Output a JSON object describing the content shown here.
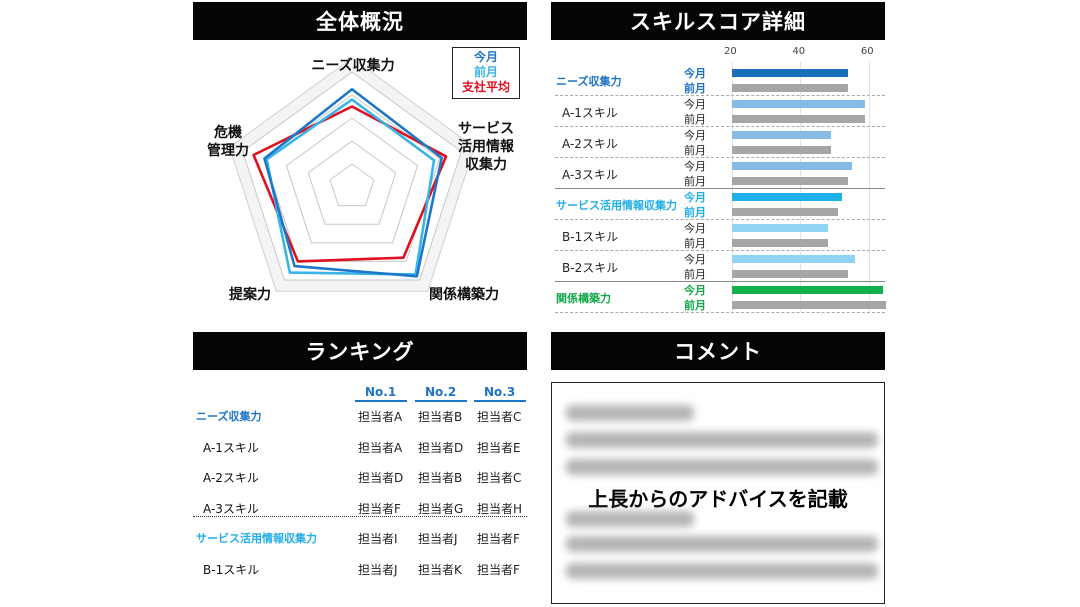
{
  "panels": {
    "overview": {
      "title": "全体概況"
    },
    "skill_score": {
      "title": "スキルスコア詳細"
    },
    "ranking": {
      "title": "ランキング"
    },
    "comment": {
      "title": "コメント"
    }
  },
  "legend": {
    "this_month": "今月",
    "last_month": "前月",
    "company_avg": "支社平均"
  },
  "colors": {
    "this_month": "#1f77c8",
    "last_month": "#39b4e6",
    "company_avg": "#e0101e",
    "cat_blue": "#1e74c6",
    "cat_cyan": "#22aee8",
    "cat_green": "#14a84a",
    "gray_bar": "#a6a6a6",
    "bar_blue_dark": "#1a6fba",
    "bar_blue_light": "#86bbe6",
    "bar_cyan": "#1eb0e8",
    "bar_cyan_light": "#8fd4f2",
    "bar_green": "#10b04c"
  },
  "radar": {
    "axes": [
      "ニーズ収集力",
      "サービス活用情報収集力",
      "関係構築力",
      "提案力",
      "危機管理力"
    ],
    "axis_labels": {
      "needs": "ニーズ収集力",
      "service": [
        "サービス",
        "活用情報",
        "収集力"
      ],
      "relation": "関係構築力",
      "proposal": "提案力",
      "risk": [
        "危機",
        "管理力"
      ]
    },
    "max": 100,
    "series": [
      {
        "key": "this_month",
        "values": [
          85,
          82,
          96,
          85,
          80
        ]
      },
      {
        "key": "last_month",
        "values": [
          76,
          75,
          94,
          92,
          78
        ]
      },
      {
        "key": "company_avg",
        "values": [
          70,
          86,
          76,
          80,
          90
        ]
      }
    ]
  },
  "chart_data": {
    "type": "bar",
    "title": "スキルスコア詳細",
    "xlim": [
      20,
      65
    ],
    "ticks": [
      20,
      40,
      60
    ],
    "tick_labels": [
      "20",
      "40",
      "60"
    ],
    "rows": [
      {
        "category": "ニーズ収集力",
        "is_header": true,
        "color_group": "blue",
        "this_month": 54,
        "last_month": 54
      },
      {
        "category": "A-1スキル",
        "is_header": false,
        "color_group": "blue",
        "this_month": 59,
        "last_month": 59
      },
      {
        "category": "A-2スキル",
        "is_header": false,
        "color_group": "blue",
        "this_month": 49,
        "last_month": 49
      },
      {
        "category": "A-3スキル",
        "is_header": false,
        "color_group": "blue",
        "this_month": 55,
        "last_month": 54
      },
      {
        "category": "サービス活用情報収集力",
        "is_header": true,
        "color_group": "cyan",
        "this_month": 52,
        "last_month": 51
      },
      {
        "category": "B-1スキル",
        "is_header": false,
        "color_group": "cyan",
        "this_month": 48,
        "last_month": 48
      },
      {
        "category": "B-2スキル",
        "is_header": false,
        "color_group": "cyan",
        "this_month": 56,
        "last_month": 54
      },
      {
        "category": "関係構築力",
        "is_header": true,
        "color_group": "green",
        "this_month": 64,
        "last_month": 65
      }
    ],
    "series": [
      {
        "name": "今月",
        "key": "this_month"
      },
      {
        "name": "前月",
        "key": "last_month"
      }
    ]
  },
  "ranking": {
    "columns": [
      "No.1",
      "No.2",
      "No.3"
    ],
    "rows": [
      {
        "label": "ニーズ収集力",
        "is_header": true,
        "color_group": "blue",
        "cells": [
          "担当者A",
          "担当者B",
          "担当者C"
        ]
      },
      {
        "label": "A-1スキル",
        "is_header": false,
        "color_group": "blue",
        "cells": [
          "担当者A",
          "担当者D",
          "担当者E"
        ]
      },
      {
        "label": "A-2スキル",
        "is_header": false,
        "color_group": "blue",
        "cells": [
          "担当者D",
          "担当者B",
          "担当者C"
        ]
      },
      {
        "label": "A-3スキル",
        "is_header": false,
        "color_group": "blue",
        "cells": [
          "担当者F",
          "担当者G",
          "担当者H"
        ]
      },
      {
        "label": "サービス活用情報収集力",
        "is_header": true,
        "color_group": "cyan",
        "cells": [
          "担当者I",
          "担当者J",
          "担当者F"
        ]
      },
      {
        "label": "B-1スキル",
        "is_header": false,
        "color_group": "cyan",
        "cells": [
          "担当者J",
          "担当者K",
          "担当者F"
        ]
      }
    ]
  },
  "comment": {
    "main_text": "上長からのアドバイスを記載"
  }
}
